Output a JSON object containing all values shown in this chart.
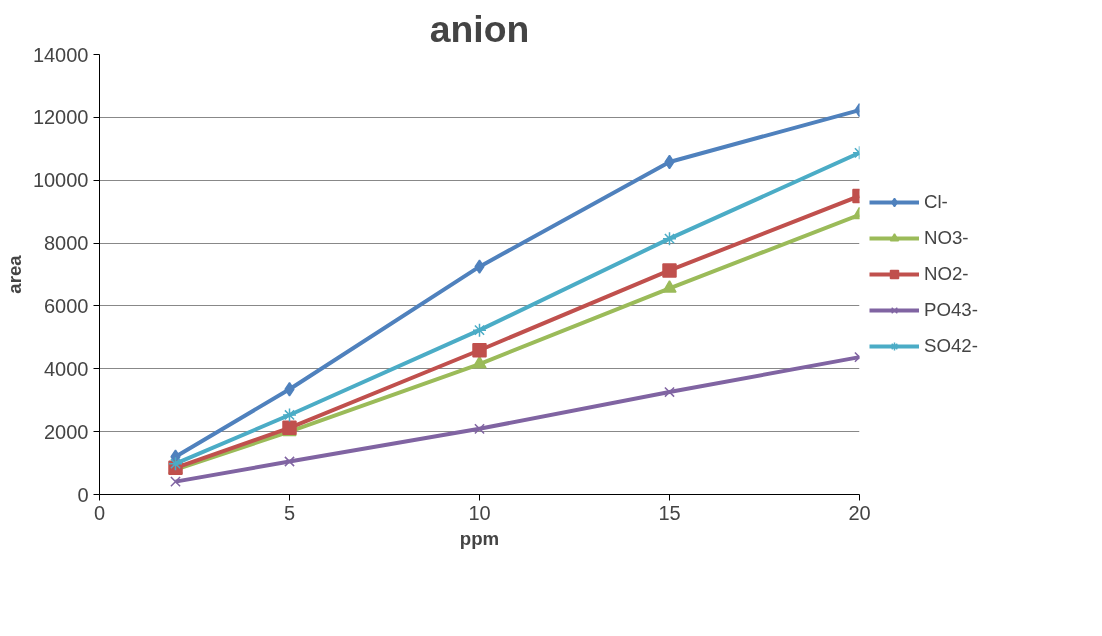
{
  "chart_data": {
    "type": "line",
    "title": "anion",
    "xlabel": "ppm",
    "ylabel": "area",
    "x": [
      2,
      5,
      10,
      15,
      20
    ],
    "series": [
      {
        "name": "Cl-",
        "color": "#4f81bd",
        "marker": "diamond",
        "values": [
          1200,
          3350,
          7250,
          10580,
          12230
        ]
      },
      {
        "name": "NO3-",
        "color": "#9bbb59",
        "marker": "triangle",
        "values": [
          790,
          2000,
          4150,
          6560,
          8900
        ]
      },
      {
        "name": "NO2-",
        "color": "#c0504d",
        "marker": "square",
        "values": [
          850,
          2120,
          4590,
          7130,
          9500
        ]
      },
      {
        "name": "PO43-",
        "color": "#8064a2",
        "marker": "x",
        "values": [
          410,
          1050,
          2090,
          3260,
          4370
        ]
      },
      {
        "name": "SO42-",
        "color": "#4bacc6",
        "marker": "cross",
        "values": [
          980,
          2530,
          5230,
          8140,
          10870
        ]
      }
    ],
    "xlim": [
      0,
      20
    ],
    "xticks": [
      0,
      5,
      10,
      15,
      20
    ],
    "ylim": [
      0,
      14000
    ],
    "yticks": [
      0,
      2000,
      4000,
      6000,
      8000,
      10000,
      12000,
      14000
    ],
    "grid": "y",
    "legend": "right",
    "line_style": "solid"
  }
}
